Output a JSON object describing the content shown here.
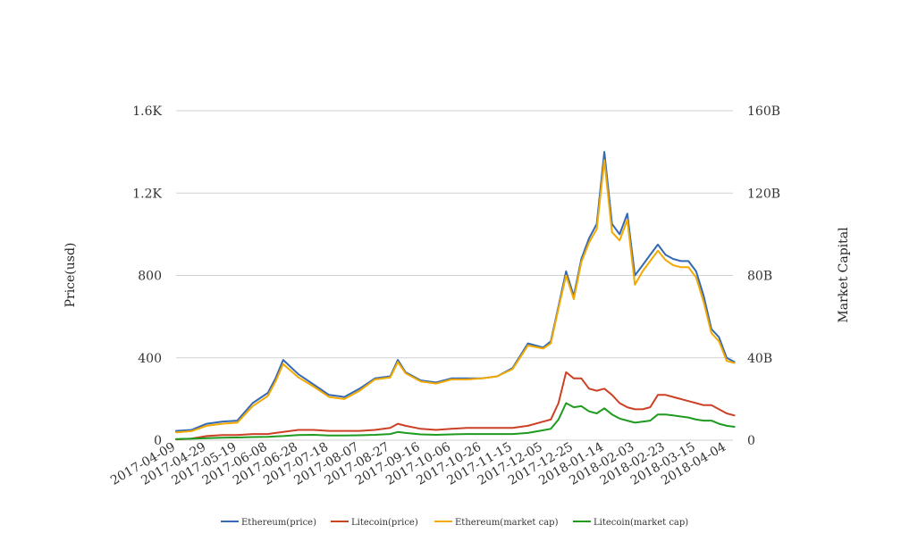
{
  "chart_data": {
    "type": "line",
    "x_ticks": [
      "2017-04-09",
      "2017-04-29",
      "2017-05-19",
      "2017-06-08",
      "2017-06-28",
      "2017-07-18",
      "2017-08-07",
      "2017-08-27",
      "2017-09-16",
      "2017-10-06",
      "2017-10-26",
      "2017-11-15",
      "2017-12-05",
      "2017-12-25",
      "2018-01-14",
      "2018-02-03",
      "2018-02-23",
      "2018-03-15",
      "2018-04-04"
    ],
    "x": [
      "2017-04-09",
      "2017-04-19",
      "2017-04-29",
      "2017-05-09",
      "2017-05-19",
      "2017-05-29",
      "2017-06-08",
      "2017-06-13",
      "2017-06-18",
      "2017-06-28",
      "2017-07-08",
      "2017-07-18",
      "2017-07-28",
      "2017-08-07",
      "2017-08-17",
      "2017-08-27",
      "2017-09-01",
      "2017-09-06",
      "2017-09-16",
      "2017-09-26",
      "2017-10-06",
      "2017-10-16",
      "2017-10-26",
      "2017-11-05",
      "2017-11-15",
      "2017-11-25",
      "2017-12-05",
      "2017-12-10",
      "2017-12-15",
      "2017-12-20",
      "2017-12-25",
      "2017-12-30",
      "2018-01-04",
      "2018-01-09",
      "2018-01-14",
      "2018-01-19",
      "2018-01-24",
      "2018-01-29",
      "2018-02-03",
      "2018-02-08",
      "2018-02-13",
      "2018-02-18",
      "2018-02-23",
      "2018-02-28",
      "2018-03-05",
      "2018-03-10",
      "2018-03-15",
      "2018-03-20",
      "2018-03-25",
      "2018-03-30",
      "2018-04-04",
      "2018-04-09"
    ],
    "y_left": {
      "label": "Price(usd)",
      "ticks": [
        "0",
        "400",
        "800",
        "1.2K",
        "1.6K"
      ],
      "range": [
        0,
        1600
      ]
    },
    "y_right": {
      "label": "Market Capital",
      "ticks": [
        "0",
        "40B",
        "80B",
        "120B",
        "160B"
      ],
      "range": [
        0,
        160
      ]
    },
    "series": [
      {
        "name": "Ethereum(price)",
        "color": "#3569b4",
        "axis": "left",
        "values": [
          45,
          50,
          80,
          90,
          95,
          180,
          230,
          300,
          390,
          320,
          270,
          220,
          210,
          250,
          300,
          310,
          390,
          330,
          290,
          280,
          300,
          300,
          300,
          310,
          350,
          470,
          450,
          480,
          650,
          820,
          700,
          880,
          980,
          1050,
          1400,
          1050,
          1000,
          1100,
          800,
          850,
          900,
          950,
          900,
          880,
          870,
          870,
          820,
          700,
          540,
          500,
          400,
          380
        ]
      },
      {
        "name": "Litecoin(price)",
        "color": "#cc4125",
        "axis": "left",
        "values": [
          4,
          8,
          20,
          25,
          25,
          30,
          30,
          35,
          40,
          50,
          50,
          45,
          45,
          45,
          50,
          60,
          80,
          70,
          55,
          50,
          55,
          60,
          60,
          60,
          60,
          70,
          90,
          100,
          180,
          330,
          300,
          300,
          250,
          240,
          250,
          220,
          180,
          160,
          150,
          150,
          160,
          220,
          220,
          210,
          200,
          190,
          180,
          170,
          170,
          150,
          130,
          120
        ]
      },
      {
        "name": "Ethereum(market cap)",
        "color": "#f2a900",
        "axis": "right",
        "values": [
          3.8,
          4.4,
          7.0,
          8.0,
          8.5,
          16.5,
          21.5,
          28.5,
          37.0,
          30.5,
          26.0,
          21.0,
          20.0,
          24.0,
          29.5,
          30.5,
          38.0,
          32.5,
          28.5,
          27.5,
          29.5,
          29.5,
          30.0,
          31.0,
          34.5,
          46.0,
          44.5,
          47.0,
          64.0,
          80.0,
          68.5,
          86.5,
          96.0,
          102.5,
          136.0,
          101.0,
          97.0,
          107.0,
          75.5,
          82.0,
          87.0,
          92.0,
          87.5,
          85.0,
          84.0,
          84.0,
          79.0,
          67.0,
          52.0,
          48.0,
          38.5,
          37.5
        ]
      },
      {
        "name": "Litecoin(market cap)",
        "color": "#1f9b1f",
        "axis": "right",
        "values": [
          0.5,
          0.7,
          1.0,
          1.2,
          1.3,
          1.5,
          1.6,
          1.8,
          2.0,
          2.5,
          2.6,
          2.3,
          2.3,
          2.4,
          2.6,
          3.0,
          4.0,
          3.5,
          2.8,
          2.6,
          2.8,
          3.0,
          3.0,
          3.0,
          3.0,
          3.5,
          4.8,
          5.5,
          10.0,
          18.0,
          16.0,
          16.5,
          14.0,
          13.0,
          15.5,
          12.5,
          10.5,
          9.5,
          8.5,
          9.0,
          9.5,
          12.5,
          12.5,
          12.0,
          11.5,
          11.0,
          10.0,
          9.5,
          9.5,
          8.0,
          7.0,
          6.5
        ]
      }
    ],
    "grid": true,
    "legend": "bottom"
  }
}
